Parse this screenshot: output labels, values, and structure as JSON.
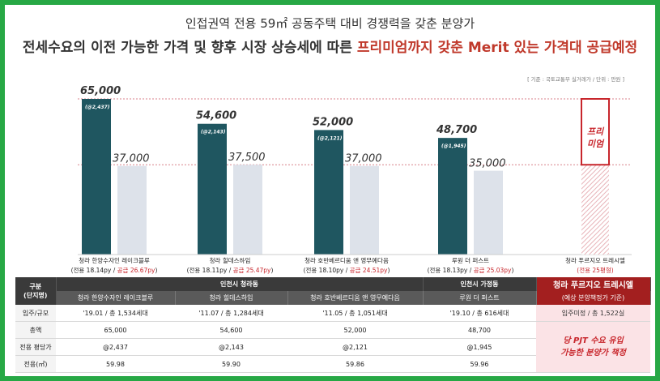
{
  "header": {
    "line1": "인접권역 전용 59㎡ 공동주택 대비 경쟁력을 갖춘 분양가",
    "line2_prefix": "전세수요의 이전 가능한 가격 및 향후 시장 상승세에 따른 ",
    "line2_highlight": "프리미엄까지 갖춘 Merit 있는 가격대 공급예정",
    "source": "[ 기준 : 국토교통부 실거래가 / 단위 : 만원 ]"
  },
  "chart_data": {
    "type": "bar",
    "unit": "만원",
    "categories": [
      {
        "name": "청라 한양수자인 레이크블루",
        "spec": "(전용 18.14py / ",
        "rate": "공급 26.67py",
        "close": ")"
      },
      {
        "name": "청라 힐데스하임",
        "spec": "(전용 18.11py / ",
        "rate": "공급 25.47py",
        "close": ")"
      },
      {
        "name": "청라 호반베르디움 앤 영무예다음",
        "spec": "(전용 18.10py / ",
        "rate": "공급 24.51py",
        "close": ")"
      },
      {
        "name": "루원 더 퍼스트",
        "spec": "(전용 18.13py / ",
        "rate": "공급 25.03py",
        "close": ")"
      }
    ],
    "series": [
      {
        "values": [
          65000,
          54600,
          52000,
          48700
        ],
        "labels": [
          "65,000",
          "54,600",
          "52,000",
          "48,700"
        ],
        "sub_labels": [
          "(@2,437)",
          "(@2,143)",
          "(@2,121)",
          "(@1,945)"
        ],
        "color": "#1f5660"
      },
      {
        "values": [
          37000,
          37500,
          37000,
          35000
        ],
        "labels": [
          "37,000",
          "37,500",
          "37,000",
          "35,000"
        ],
        "color": "#dde2ea"
      }
    ],
    "premium": {
      "name": "청라 푸르지오 트레시엘",
      "spec": "(전용 25평형)",
      "label": "프리\n미엄",
      "color": "#c8262c"
    },
    "ylim": [
      0,
      70000
    ]
  },
  "table": {
    "gubun": [
      "구분",
      "(단지명)"
    ],
    "region1": "인천시 청라동",
    "region2": "인천시 가정동",
    "plan_title": "청라 푸르지오 트레시엘",
    "plan_sub": "(예상 분양책정가 기준)",
    "complexes": [
      "청라 한양수자인 레이크블루",
      "청라 힐데스하임",
      "청라 호반베르디움 앤 영무예다음",
      "루원 더 퍼스트"
    ],
    "rows": [
      {
        "label": "입주/규모",
        "values": [
          "'19.01 / 총 1,534세대",
          "'11.07 / 총 1,284세대",
          "'11.05 / 총 1,051세대",
          "'19.10 / 총 616세대"
        ],
        "plan": "입주미정 / 총 1,522실"
      },
      {
        "label": "총액",
        "values": [
          "65,000",
          "54,600",
          "52,000",
          "48,700"
        ]
      },
      {
        "label": "전용 평당가",
        "values": [
          "@2,437",
          "@2,143",
          "@2,121",
          "@1,945"
        ]
      },
      {
        "label": "전용(㎡)",
        "values": [
          "59.98",
          "59.90",
          "59.86",
          "59.96"
        ]
      }
    ],
    "plan_note": "당 PJT 수요 유입\n가능한 분양가 책정"
  }
}
